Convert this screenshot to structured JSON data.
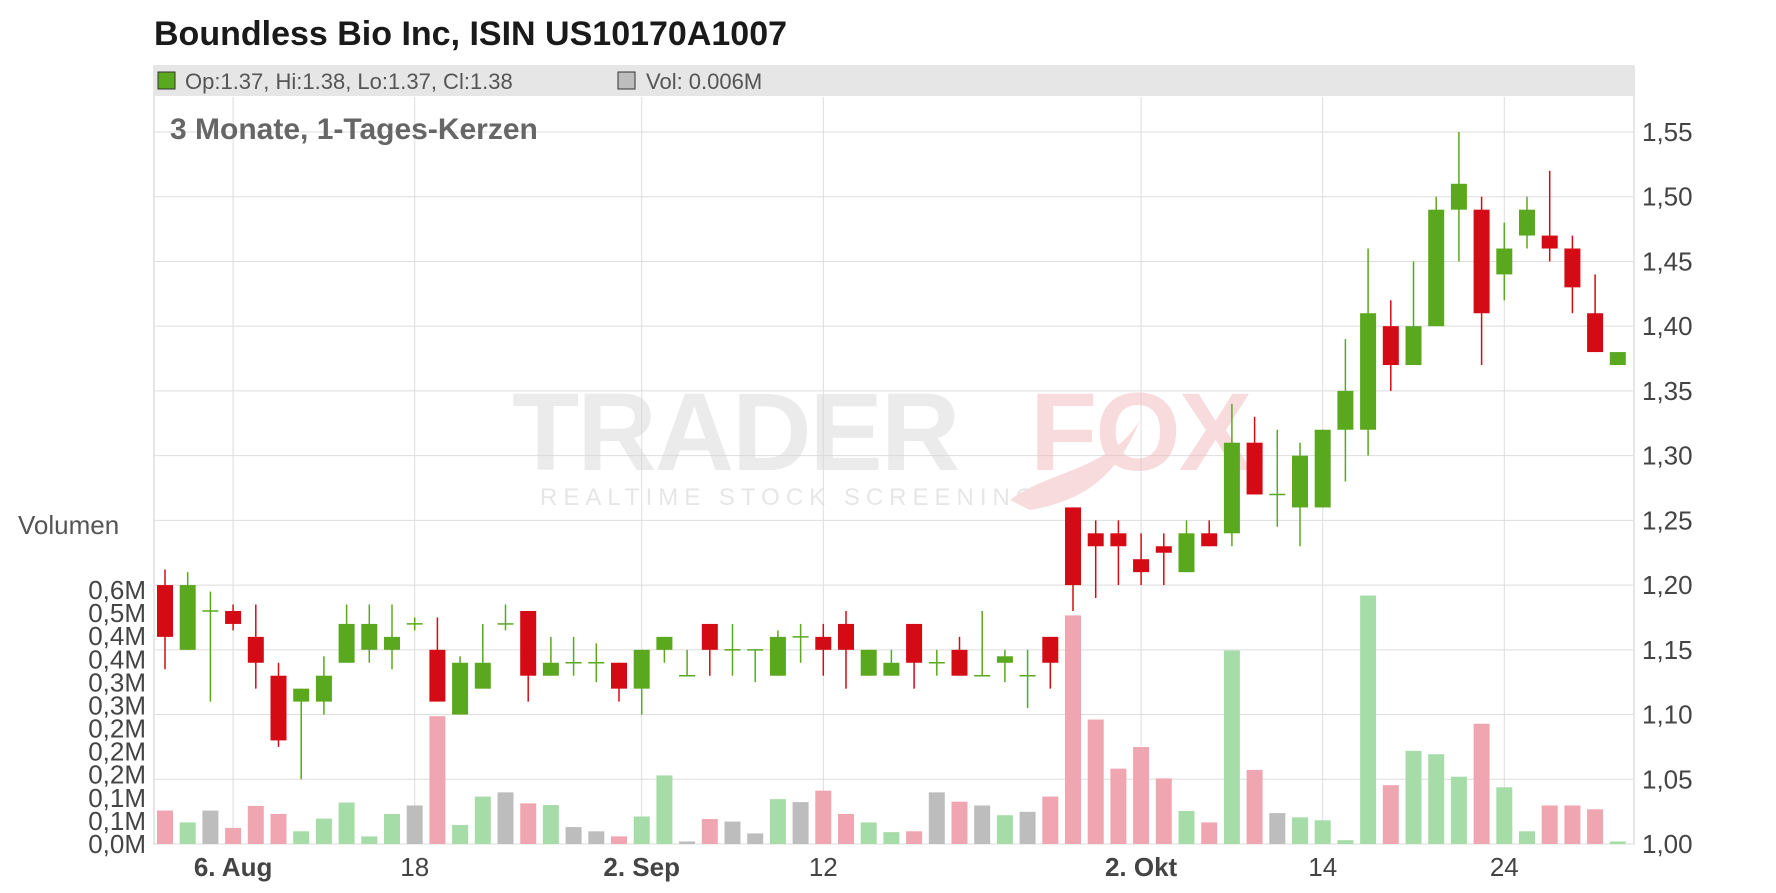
{
  "header": {
    "title": "Boundless Bio Inc, ISIN US10170A1007",
    "ohlc_legend": "Op:1.37, Hi:1.38, Lo:1.37, Cl:1.38",
    "volume_legend": "Vol: 0.006M",
    "subtitle": "3 Monate, 1-Tages-Kerzen"
  },
  "watermark": {
    "brand_part1": "TRADER",
    "brand_part2": "FOX",
    "tagline": "REALTIME STOCK SCREENING"
  },
  "colors": {
    "up": "#5aa81e",
    "down": "#d40a14",
    "up_volume": "#a6dca7",
    "down_volume": "#f0a6b1",
    "neutral_volume": "#bdbdbd",
    "grid": "#dddddd",
    "legend_bar": "#e6e6e6"
  },
  "chart_data": {
    "type": "candlestick",
    "price_axis": {
      "range": [
        1.0,
        1.55
      ],
      "ticks": [
        1.0,
        1.05,
        1.1,
        1.15,
        1.2,
        1.25,
        1.3,
        1.35,
        1.4,
        1.45,
        1.5,
        1.55
      ],
      "tick_labels": [
        "1,00",
        "1,05",
        "1,10",
        "1,15",
        "1,20",
        "1,25",
        "1,30",
        "1,35",
        "1,40",
        "1,45",
        "1,50",
        "1,55"
      ]
    },
    "volume_axis": {
      "label": "Volumen",
      "range_millions": [
        0,
        0.6
      ],
      "tick_labels": [
        "0,0M",
        "0,1M",
        "0,1M",
        "0,2M",
        "0,2M",
        "0,2M",
        "0,3M",
        "0,3M",
        "0,4M",
        "0,4M",
        "0,5M",
        "0,6M"
      ]
    },
    "x_axis": {
      "labels": [
        {
          "text": "6. Aug",
          "index": 3,
          "bold": true
        },
        {
          "text": "18",
          "index": 11,
          "bold": false
        },
        {
          "text": "2. Sep",
          "index": 21,
          "bold": true
        },
        {
          "text": "12",
          "index": 29,
          "bold": false
        },
        {
          "text": "2. Okt",
          "index": 43,
          "bold": true
        },
        {
          "text": "14",
          "index": 51,
          "bold": false
        },
        {
          "text": "24",
          "index": 59,
          "bold": false
        }
      ]
    },
    "candles": [
      {
        "o": 1.2,
        "h": 1.212,
        "l": 1.135,
        "c": 1.16,
        "v": 0.079
      },
      {
        "o": 1.15,
        "h": 1.21,
        "l": 1.15,
        "c": 1.2,
        "v": 0.051
      },
      {
        "o": 1.18,
        "h": 1.195,
        "l": 1.11,
        "c": 1.18,
        "v": 0.079
      },
      {
        "o": 1.18,
        "h": 1.185,
        "l": 1.165,
        "c": 1.17,
        "v": 0.038
      },
      {
        "o": 1.16,
        "h": 1.185,
        "l": 1.12,
        "c": 1.14,
        "v": 0.09
      },
      {
        "o": 1.13,
        "h": 1.14,
        "l": 1.075,
        "c": 1.08,
        "v": 0.071
      },
      {
        "o": 1.11,
        "h": 1.12,
        "l": 1.05,
        "c": 1.12,
        "v": 0.03
      },
      {
        "o": 1.11,
        "h": 1.145,
        "l": 1.1,
        "c": 1.13,
        "v": 0.06
      },
      {
        "o": 1.14,
        "h": 1.185,
        "l": 1.14,
        "c": 1.17,
        "v": 0.098
      },
      {
        "o": 1.15,
        "h": 1.185,
        "l": 1.14,
        "c": 1.17,
        "v": 0.018
      },
      {
        "o": 1.15,
        "h": 1.185,
        "l": 1.135,
        "c": 1.16,
        "v": 0.071
      },
      {
        "o": 1.17,
        "h": 1.175,
        "l": 1.165,
        "c": 1.17,
        "v": 0.091
      },
      {
        "o": 1.15,
        "h": 1.175,
        "l": 1.11,
        "c": 1.11,
        "v": 0.302
      },
      {
        "o": 1.1,
        "h": 1.145,
        "l": 1.1,
        "c": 1.14,
        "v": 0.045
      },
      {
        "o": 1.12,
        "h": 1.17,
        "l": 1.12,
        "c": 1.14,
        "v": 0.112
      },
      {
        "o": 1.17,
        "h": 1.185,
        "l": 1.165,
        "c": 1.17,
        "v": 0.122
      },
      {
        "o": 1.18,
        "h": 1.18,
        "l": 1.11,
        "c": 1.13,
        "v": 0.096
      },
      {
        "o": 1.13,
        "h": 1.16,
        "l": 1.13,
        "c": 1.14,
        "v": 0.092
      },
      {
        "o": 1.14,
        "h": 1.16,
        "l": 1.13,
        "c": 1.14,
        "v": 0.04
      },
      {
        "o": 1.14,
        "h": 1.155,
        "l": 1.125,
        "c": 1.14,
        "v": 0.03
      },
      {
        "o": 1.14,
        "h": 1.14,
        "l": 1.11,
        "c": 1.12,
        "v": 0.018
      },
      {
        "o": 1.12,
        "h": 1.15,
        "l": 1.1,
        "c": 1.15,
        "v": 0.065
      },
      {
        "o": 1.15,
        "h": 1.16,
        "l": 1.14,
        "c": 1.16,
        "v": 0.162
      },
      {
        "o": 1.13,
        "h": 1.15,
        "l": 1.13,
        "c": 1.13,
        "v": 0.006
      },
      {
        "o": 1.17,
        "h": 1.17,
        "l": 1.13,
        "c": 1.15,
        "v": 0.059
      },
      {
        "o": 1.15,
        "h": 1.17,
        "l": 1.13,
        "c": 1.15,
        "v": 0.053
      },
      {
        "o": 1.15,
        "h": 1.15,
        "l": 1.125,
        "c": 1.15,
        "v": 0.025
      },
      {
        "o": 1.13,
        "h": 1.165,
        "l": 1.13,
        "c": 1.16,
        "v": 0.106
      },
      {
        "o": 1.16,
        "h": 1.17,
        "l": 1.14,
        "c": 1.16,
        "v": 0.099
      },
      {
        "o": 1.16,
        "h": 1.17,
        "l": 1.13,
        "c": 1.15,
        "v": 0.126
      },
      {
        "o": 1.17,
        "h": 1.18,
        "l": 1.12,
        "c": 1.15,
        "v": 0.071
      },
      {
        "o": 1.13,
        "h": 1.15,
        "l": 1.13,
        "c": 1.15,
        "v": 0.051
      },
      {
        "o": 1.13,
        "h": 1.15,
        "l": 1.13,
        "c": 1.14,
        "v": 0.028
      },
      {
        "o": 1.17,
        "h": 1.17,
        "l": 1.12,
        "c": 1.14,
        "v": 0.03
      },
      {
        "o": 1.14,
        "h": 1.15,
        "l": 1.13,
        "c": 1.14,
        "v": 0.122
      },
      {
        "o": 1.15,
        "h": 1.16,
        "l": 1.13,
        "c": 1.13,
        "v": 0.1
      },
      {
        "o": 1.13,
        "h": 1.18,
        "l": 1.13,
        "c": 1.13,
        "v": 0.091
      },
      {
        "o": 1.14,
        "h": 1.15,
        "l": 1.125,
        "c": 1.145,
        "v": 0.068
      },
      {
        "o": 1.13,
        "h": 1.15,
        "l": 1.105,
        "c": 1.13,
        "v": 0.076
      },
      {
        "o": 1.16,
        "h": 1.16,
        "l": 1.12,
        "c": 1.14,
        "v": 0.112
      },
      {
        "o": 1.26,
        "h": 1.26,
        "l": 1.18,
        "c": 1.2,
        "v": 0.54
      },
      {
        "o": 1.24,
        "h": 1.25,
        "l": 1.19,
        "c": 1.23,
        "v": 0.294
      },
      {
        "o": 1.24,
        "h": 1.25,
        "l": 1.2,
        "c": 1.23,
        "v": 0.178
      },
      {
        "o": 1.22,
        "h": 1.24,
        "l": 1.2,
        "c": 1.21,
        "v": 0.229
      },
      {
        "o": 1.23,
        "h": 1.24,
        "l": 1.2,
        "c": 1.225,
        "v": 0.155
      },
      {
        "o": 1.21,
        "h": 1.25,
        "l": 1.21,
        "c": 1.24,
        "v": 0.078
      },
      {
        "o": 1.24,
        "h": 1.25,
        "l": 1.23,
        "c": 1.23,
        "v": 0.051
      },
      {
        "o": 1.24,
        "h": 1.34,
        "l": 1.23,
        "c": 1.31,
        "v": 0.457
      },
      {
        "o": 1.31,
        "h": 1.33,
        "l": 1.27,
        "c": 1.27,
        "v": 0.175
      },
      {
        "o": 1.27,
        "h": 1.32,
        "l": 1.245,
        "c": 1.27,
        "v": 0.073
      },
      {
        "o": 1.26,
        "h": 1.31,
        "l": 1.23,
        "c": 1.3,
        "v": 0.063
      },
      {
        "o": 1.26,
        "h": 1.32,
        "l": 1.26,
        "c": 1.32,
        "v": 0.056
      },
      {
        "o": 1.32,
        "h": 1.39,
        "l": 1.28,
        "c": 1.35,
        "v": 0.009
      },
      {
        "o": 1.32,
        "h": 1.46,
        "l": 1.3,
        "c": 1.41,
        "v": 0.587
      },
      {
        "o": 1.4,
        "h": 1.42,
        "l": 1.35,
        "c": 1.37,
        "v": 0.139
      },
      {
        "o": 1.37,
        "h": 1.45,
        "l": 1.37,
        "c": 1.4,
        "v": 0.22
      },
      {
        "o": 1.4,
        "h": 1.5,
        "l": 1.4,
        "c": 1.49,
        "v": 0.212
      },
      {
        "o": 1.49,
        "h": 1.55,
        "l": 1.45,
        "c": 1.51,
        "v": 0.159
      },
      {
        "o": 1.49,
        "h": 1.5,
        "l": 1.37,
        "c": 1.41,
        "v": 0.284
      },
      {
        "o": 1.44,
        "h": 1.48,
        "l": 1.42,
        "c": 1.46,
        "v": 0.134
      },
      {
        "o": 1.47,
        "h": 1.5,
        "l": 1.46,
        "c": 1.49,
        "v": 0.03
      },
      {
        "o": 1.47,
        "h": 1.52,
        "l": 1.45,
        "c": 1.46,
        "v": 0.091
      },
      {
        "o": 1.46,
        "h": 1.47,
        "l": 1.41,
        "c": 1.43,
        "v": 0.091
      },
      {
        "o": 1.41,
        "h": 1.44,
        "l": 1.38,
        "c": 1.38,
        "v": 0.082
      },
      {
        "o": 1.37,
        "h": 1.38,
        "l": 1.37,
        "c": 1.38,
        "v": 0.006
      }
    ]
  }
}
